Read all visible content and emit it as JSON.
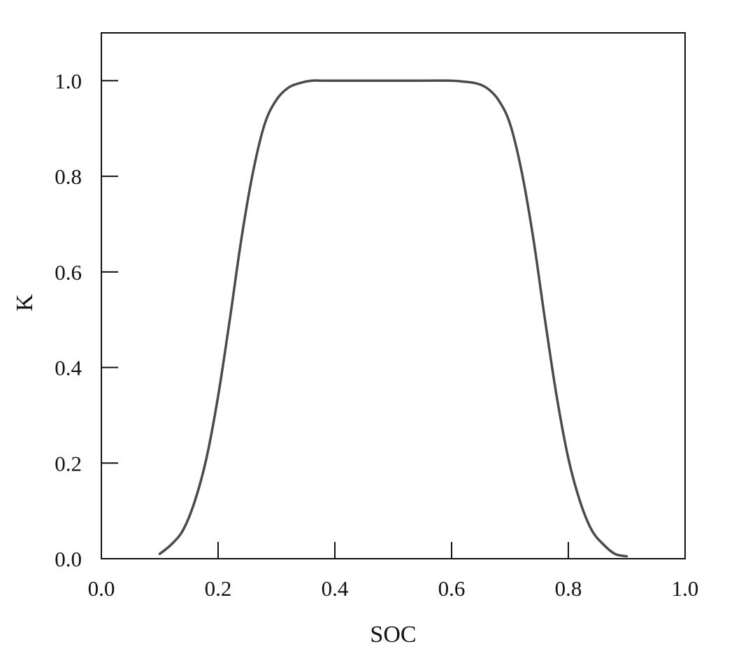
{
  "chart_data": {
    "type": "line",
    "title": "",
    "xlabel": "SOC",
    "ylabel": "K",
    "xlim": [
      0.0,
      1.0
    ],
    "ylim": [
      0.0,
      1.1
    ],
    "xticks": [
      "0.0",
      "0.2",
      "0.4",
      "0.6",
      "0.8",
      "1.0"
    ],
    "yticks": [
      "0.0",
      "0.2",
      "0.4",
      "0.6",
      "0.8",
      "1.0"
    ],
    "grid": false,
    "legend": "none",
    "series": [
      {
        "color": "#4a4a4a",
        "x": [
          0.1,
          0.12,
          0.14,
          0.16,
          0.18,
          0.2,
          0.22,
          0.24,
          0.26,
          0.28,
          0.3,
          0.32,
          0.34,
          0.36,
          0.38,
          0.4,
          0.45,
          0.5,
          0.55,
          0.6,
          0.62,
          0.64,
          0.66,
          0.68,
          0.7,
          0.72,
          0.74,
          0.76,
          0.78,
          0.8,
          0.82,
          0.84,
          0.86,
          0.88,
          0.9
        ],
        "y": [
          0.01,
          0.03,
          0.06,
          0.12,
          0.21,
          0.34,
          0.5,
          0.67,
          0.81,
          0.91,
          0.96,
          0.985,
          0.995,
          1.0,
          1.0,
          1.0,
          1.0,
          1.0,
          1.0,
          1.0,
          0.998,
          0.995,
          0.985,
          0.96,
          0.91,
          0.81,
          0.67,
          0.5,
          0.34,
          0.21,
          0.12,
          0.06,
          0.03,
          0.01,
          0.005
        ]
      }
    ]
  }
}
